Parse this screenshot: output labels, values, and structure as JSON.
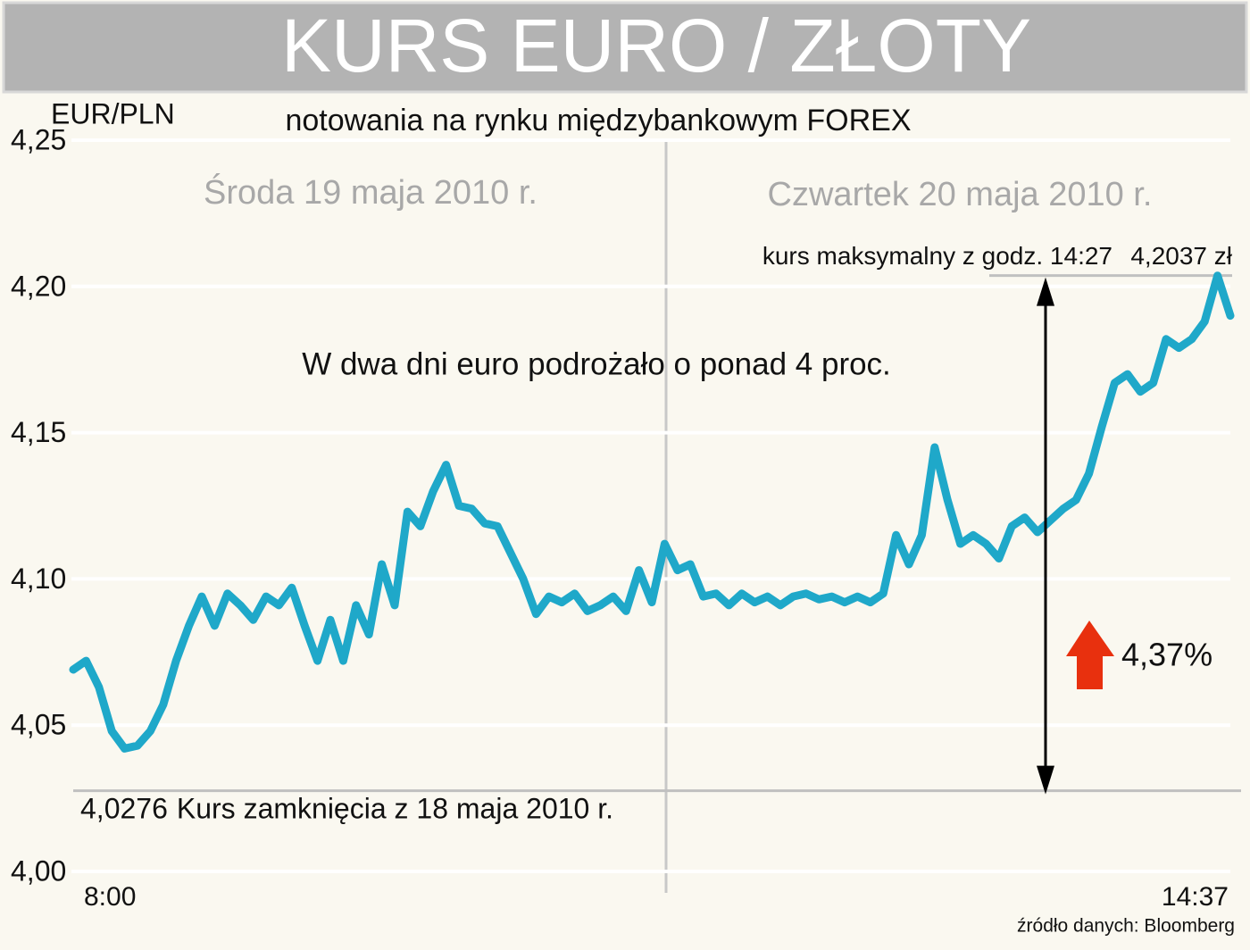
{
  "chart_data": {
    "type": "line",
    "title": "KURS EURO / ZŁOTY",
    "subtitle": "notowania na rynku międzybankowym FOREX",
    "y_label": "EUR/PLN",
    "headline": "W dwa dni euro podrożało o ponad 4 proc.",
    "days": [
      "Środa 19 maja 2010 r.",
      "Czwartek 20 maja 2010 r."
    ],
    "change": "4,37%",
    "source": "źródło danych: Bloomberg",
    "close": {
      "value": 4.0276,
      "label": "4,0276",
      "text": "Kurs zamknięcia z 18 maja 2010 r."
    },
    "max": {
      "value": 4.2037,
      "label": "4,2037 zł",
      "text": "kurs maksymalny z godz. 14:27"
    },
    "ylim": [
      4.0,
      4.25
    ],
    "yticks": [
      {
        "value": 4.0,
        "label": "4,00"
      },
      {
        "value": 4.05,
        "label": "4,05"
      },
      {
        "value": 4.1,
        "label": "4,10"
      },
      {
        "value": 4.15,
        "label": "4,15"
      },
      {
        "value": 4.2,
        "label": "4,20"
      },
      {
        "value": 4.25,
        "label": "4,25"
      }
    ],
    "grid": true,
    "categories": [
      "8:00",
      null,
      null,
      null,
      null,
      null,
      null,
      null,
      null,
      null,
      null,
      null,
      null,
      null,
      null,
      null,
      null,
      null,
      null,
      null,
      null,
      null,
      null,
      null,
      null,
      null,
      null,
      null,
      null,
      null,
      null,
      null,
      null,
      null,
      null,
      null,
      null,
      null,
      null,
      null,
      null,
      null,
      null,
      null,
      null,
      null,
      null,
      null,
      null,
      null,
      null,
      null,
      null,
      null,
      null,
      null,
      null,
      null,
      null,
      null,
      null,
      null,
      null,
      null,
      null,
      null,
      null,
      null,
      null,
      null,
      null,
      null,
      null,
      null,
      null,
      null,
      null,
      null,
      null,
      null,
      null,
      null,
      null,
      null,
      null,
      null,
      null,
      null,
      null,
      null,
      "14:37"
    ],
    "series": [
      {
        "name": "EUR/PLN",
        "color": "#1fa8c9",
        "values": [
          4.069,
          4.072,
          4.063,
          4.048,
          4.042,
          4.043,
          4.048,
          4.057,
          4.072,
          4.084,
          4.094,
          4.084,
          4.095,
          4.091,
          4.086,
          4.094,
          4.091,
          4.097,
          4.084,
          4.072,
          4.086,
          4.072,
          4.091,
          4.081,
          4.105,
          4.091,
          4.123,
          4.118,
          4.13,
          4.139,
          4.125,
          4.124,
          4.119,
          4.118,
          4.109,
          4.1,
          4.088,
          4.094,
          4.092,
          4.095,
          4.089,
          4.091,
          4.094,
          4.089,
          4.103,
          4.092,
          4.112,
          4.103,
          4.105,
          4.094,
          4.095,
          4.091,
          4.095,
          4.092,
          4.094,
          4.091,
          4.094,
          4.095,
          4.093,
          4.094,
          4.092,
          4.094,
          4.092,
          4.095,
          4.115,
          4.105,
          4.115,
          4.145,
          4.127,
          4.112,
          4.115,
          4.112,
          4.107,
          4.118,
          4.121,
          4.116,
          4.12,
          4.124,
          4.127,
          4.136,
          4.152,
          4.167,
          4.17,
          4.164,
          4.167,
          4.182,
          4.179,
          4.182,
          4.188,
          4.2037,
          4.19
        ]
      }
    ]
  }
}
